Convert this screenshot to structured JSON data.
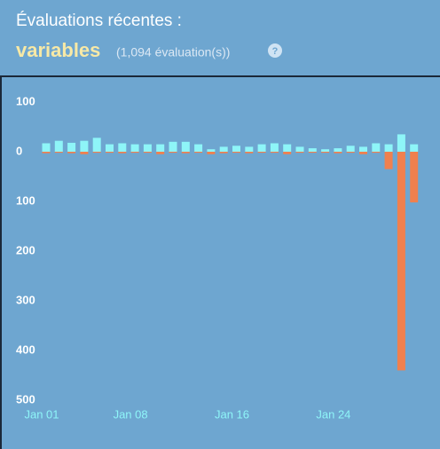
{
  "header": {
    "title": "Évaluations récentes :",
    "summary": "variables",
    "count": "(1,094 évaluation(s))",
    "help": "?"
  },
  "chart_data": {
    "type": "bar",
    "categories": [
      "Jan 01",
      null,
      null,
      null,
      null,
      null,
      null,
      "Jan 08",
      null,
      null,
      null,
      null,
      null,
      null,
      null,
      "Jan 16",
      null,
      null,
      null,
      null,
      null,
      null,
      null,
      "Jan 24",
      null,
      null,
      null,
      null,
      null,
      null
    ],
    "series": [
      {
        "color": "#8ef5f8",
        "values": [
          17,
          22,
          18,
          22,
          28,
          15,
          17,
          15,
          15,
          15,
          20,
          20,
          15,
          5,
          10,
          12,
          10,
          15,
          17,
          15,
          10,
          7,
          5,
          7,
          12,
          10,
          17,
          15,
          35,
          15
        ]
      },
      {
        "color": "#f0804e",
        "values": [
          -3,
          -2,
          -3,
          -5,
          -2,
          -2,
          -3,
          -2,
          -2,
          -5,
          -2,
          -3,
          -2,
          -5,
          -3,
          -2,
          -3,
          -2,
          -2,
          -5,
          -2,
          -2,
          -2,
          -3,
          -2,
          -5,
          -2,
          -35,
          -440,
          -102
        ]
      }
    ],
    "ylim": [
      -500,
      100
    ],
    "yticks": [
      100,
      0,
      {
        "value": -100,
        "label": "100"
      },
      {
        "value": -200,
        "label": "200"
      },
      {
        "value": -300,
        "label": "300"
      },
      {
        "value": -400,
        "label": "400"
      },
      {
        "value": -500,
        "label": "500"
      }
    ]
  }
}
